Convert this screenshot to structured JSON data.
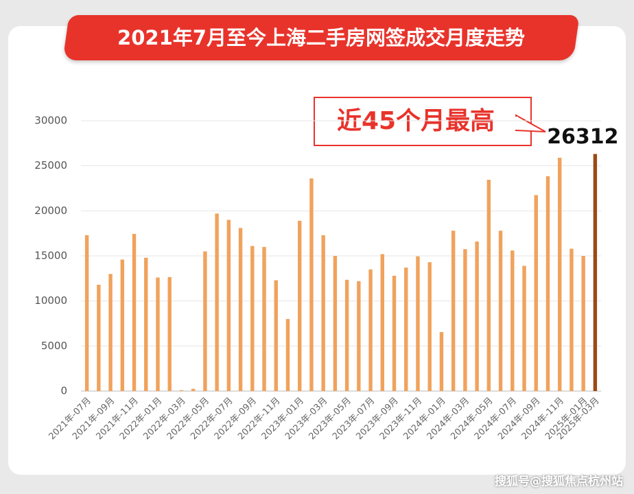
{
  "chart_data": {
    "type": "bar",
    "title": "2021年7月至今上海二手房网签成交月度走势",
    "annotation": "近45个月最高",
    "categories": [
      "2021年-07月",
      null,
      "2021年-09月",
      null,
      "2021年-11月",
      null,
      "2022年-01月",
      null,
      "2022年-03月",
      null,
      "2022年-05月",
      null,
      "2022年-07月",
      null,
      "2022年-09月",
      null,
      "2022年-11月",
      null,
      "2023年-01月",
      null,
      "2023年-03月",
      null,
      "2023年-05月",
      null,
      "2023年-07月",
      null,
      "2023年-09月",
      null,
      "2023年-11月",
      null,
      "2024年-01月",
      null,
      "2024年-03月",
      null,
      "2024年-05月",
      null,
      "2024年-07月",
      null,
      "2024年-09月",
      null,
      "2024年-11月",
      null,
      "2025年-01月",
      "2025年-03月"
    ],
    "values": [
      17300,
      11800,
      13000,
      14600,
      17450,
      14800,
      12600,
      12650,
      100,
      250,
      15500,
      19700,
      19000,
      18100,
      16100,
      16000,
      12300,
      8000,
      18900,
      23600,
      17300,
      15000,
      12350,
      12200,
      13500,
      15200,
      12800,
      13700,
      14950,
      14300,
      6550,
      17800,
      15750,
      16600,
      23450,
      17800,
      15600,
      13900,
      21750,
      23850,
      25900,
      15800,
      15000,
      26312
    ],
    "color": "#f0a25c",
    "highlight_color": "#9a4a12",
    "highlight_index": 43,
    "ylim": [
      0,
      30000
    ],
    "yticks": [
      0,
      5000,
      10000,
      15000,
      20000,
      25000,
      30000
    ],
    "grid": true
  },
  "watermark": "搜狐号@搜狐焦点杭州站"
}
